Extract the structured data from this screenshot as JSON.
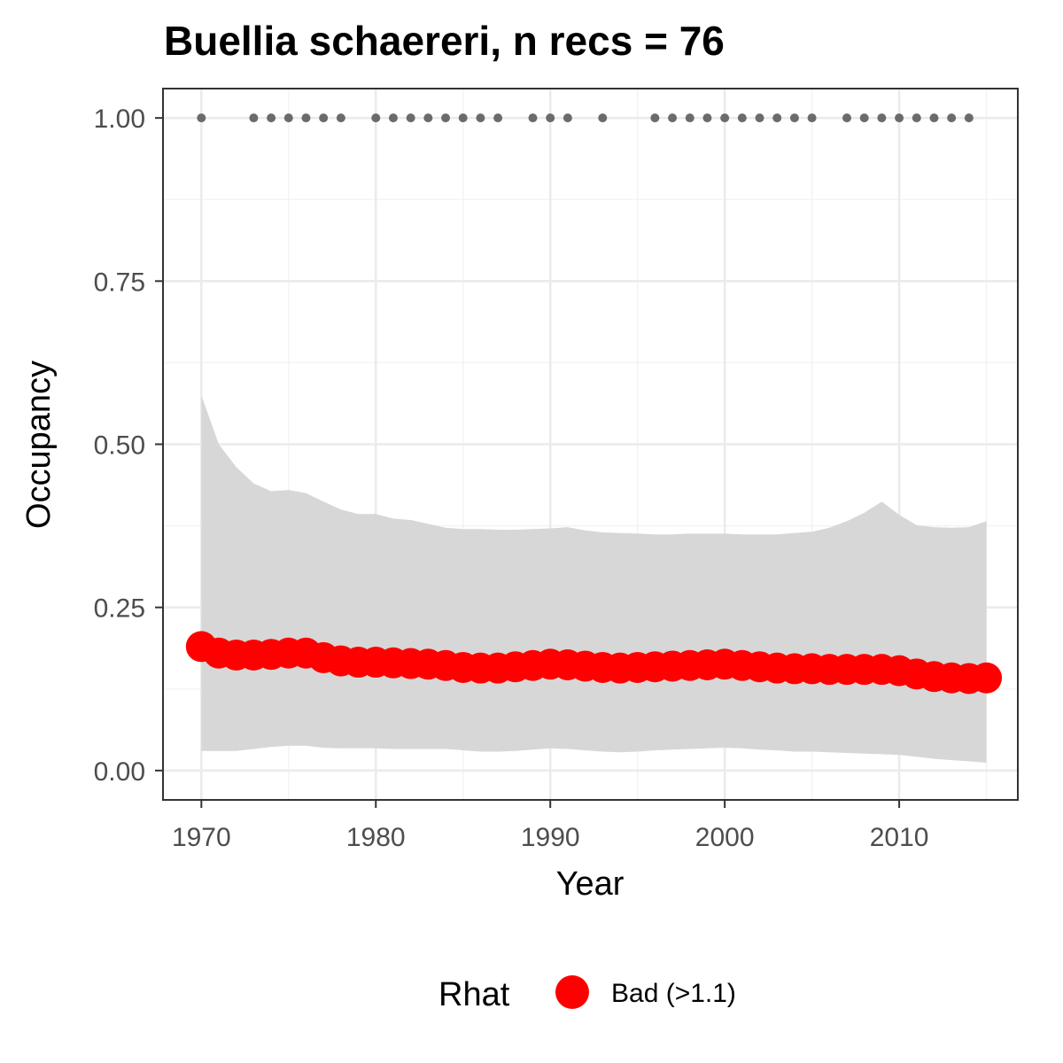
{
  "chart_data": {
    "type": "line",
    "title": "Buellia schaereri, n recs = 76",
    "xlabel": "Year",
    "ylabel": "Occupancy",
    "xlim": [
      1967.8,
      2016.8
    ],
    "ylim": [
      -0.045,
      1.045
    ],
    "x_ticks": [
      1970,
      1980,
      1990,
      2000,
      2010
    ],
    "x_tick_labels": [
      "1970",
      "1980",
      "1990",
      "2000",
      "2010"
    ],
    "y_ticks": [
      0,
      0.25,
      0.5,
      0.75,
      1.0
    ],
    "y_tick_labels": [
      "0.00",
      "0.25",
      "0.50",
      "0.75",
      "1.00"
    ],
    "grid": true,
    "legend_position": "bottom",
    "legend": {
      "title": "Rhat",
      "entries": [
        {
          "label": "Bad (>1.1)",
          "color": "#ff0000"
        }
      ]
    },
    "colors": {
      "occupancy_points": "#ff0000",
      "credible_band": "#d6d6d6",
      "record_points": "#6b6b6b"
    },
    "series": [
      {
        "type": "point",
        "x": [
          1970,
          1971,
          1972,
          1973,
          1974,
          1975,
          1976,
          1977,
          1978,
          1979,
          1980,
          1981,
          1982,
          1983,
          1984,
          1985,
          1986,
          1987,
          1988,
          1989,
          1990,
          1991,
          1992,
          1993,
          1994,
          1995,
          1996,
          1997,
          1998,
          1999,
          2000,
          2001,
          2002,
          2003,
          2004,
          2005,
          2006,
          2007,
          2008,
          2009,
          2010,
          2011,
          2012,
          2013,
          2014,
          2015
        ],
        "values": [
          0.19,
          0.18,
          0.177,
          0.177,
          0.178,
          0.18,
          0.18,
          0.173,
          0.168,
          0.166,
          0.166,
          0.165,
          0.164,
          0.163,
          0.161,
          0.158,
          0.157,
          0.157,
          0.159,
          0.161,
          0.163,
          0.162,
          0.16,
          0.158,
          0.157,
          0.158,
          0.159,
          0.16,
          0.161,
          0.162,
          0.163,
          0.161,
          0.159,
          0.157,
          0.156,
          0.156,
          0.155,
          0.155,
          0.155,
          0.155,
          0.153,
          0.148,
          0.144,
          0.142,
          0.141,
          0.142
        ]
      },
      {
        "type": "ribbon",
        "x": [
          1970,
          1971,
          1972,
          1973,
          1974,
          1975,
          1976,
          1977,
          1978,
          1979,
          1980,
          1981,
          1982,
          1983,
          1984,
          1985,
          1986,
          1987,
          1988,
          1989,
          1990,
          1991,
          1992,
          1993,
          1994,
          1995,
          1996,
          1997,
          1998,
          1999,
          2000,
          2001,
          2002,
          2003,
          2004,
          2005,
          2006,
          2007,
          2008,
          2009,
          2010,
          2011,
          2012,
          2013,
          2014,
          2015
        ],
        "lower": [
          0.03,
          0.03,
          0.03,
          0.033,
          0.036,
          0.038,
          0.038,
          0.035,
          0.034,
          0.034,
          0.034,
          0.033,
          0.033,
          0.033,
          0.033,
          0.031,
          0.029,
          0.029,
          0.03,
          0.032,
          0.034,
          0.033,
          0.031,
          0.029,
          0.028,
          0.029,
          0.031,
          0.032,
          0.033,
          0.034,
          0.035,
          0.034,
          0.032,
          0.031,
          0.029,
          0.029,
          0.028,
          0.027,
          0.026,
          0.025,
          0.024,
          0.021,
          0.018,
          0.016,
          0.014,
          0.012
        ],
        "upper": [
          0.575,
          0.5,
          0.465,
          0.44,
          0.428,
          0.43,
          0.425,
          0.412,
          0.4,
          0.393,
          0.393,
          0.386,
          0.384,
          0.378,
          0.372,
          0.37,
          0.37,
          0.369,
          0.369,
          0.37,
          0.371,
          0.373,
          0.368,
          0.365,
          0.364,
          0.363,
          0.362,
          0.362,
          0.363,
          0.363,
          0.363,
          0.362,
          0.362,
          0.362,
          0.364,
          0.366,
          0.372,
          0.382,
          0.395,
          0.412,
          0.392,
          0.376,
          0.373,
          0.372,
          0.373,
          0.382
        ]
      },
      {
        "type": "point",
        "x": [
          1970,
          1973,
          1974,
          1975,
          1976,
          1977,
          1978,
          1980,
          1981,
          1982,
          1983,
          1984,
          1985,
          1986,
          1987,
          1989,
          1990,
          1991,
          1993,
          1996,
          1997,
          1998,
          1999,
          2000,
          2001,
          2002,
          2003,
          2004,
          2005,
          2007,
          2008,
          2009,
          2010,
          2011,
          2012,
          2013,
          2014
        ],
        "values": [
          1,
          1,
          1,
          1,
          1,
          1,
          1,
          1,
          1,
          1,
          1,
          1,
          1,
          1,
          1,
          1,
          1,
          1,
          1,
          1,
          1,
          1,
          1,
          1,
          1,
          1,
          1,
          1,
          1,
          1,
          1,
          1,
          1,
          1,
          1,
          1,
          1
        ]
      }
    ]
  }
}
